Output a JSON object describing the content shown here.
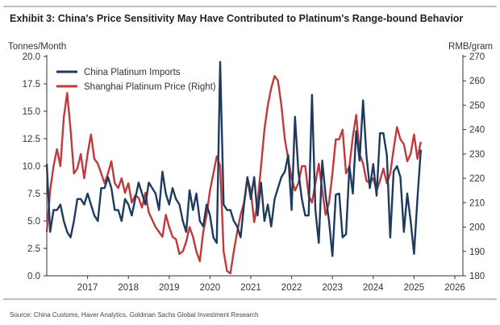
{
  "chart_data": {
    "type": "line",
    "title": "Exhibit 3: China's Price Sensitivity May Have Contributed to Platinum's Range-bound Behavior",
    "ylabel_left": "Tonnes/Month",
    "ylabel_right": "RMB/gram",
    "source": "Source: China Customs, Haver Analytics, Goldman Sachs Global Investment Research",
    "x_start": "2016-01",
    "x_frequency": "monthly",
    "xlim": [
      2016,
      2026
    ],
    "x_ticks": [
      "2017",
      "2018",
      "2019",
      "2020",
      "2021",
      "2022",
      "2023",
      "2024",
      "2025",
      "2026"
    ],
    "ylim_left": [
      0,
      20
    ],
    "y_ticks_left": [
      "0.0",
      "2.5",
      "5.0",
      "7.5",
      "10.0",
      "12.5",
      "15.0",
      "17.5",
      "20.0"
    ],
    "ylim_right": [
      180,
      270
    ],
    "y_ticks_right": [
      "180",
      "190",
      "200",
      "210",
      "220",
      "230",
      "240",
      "250",
      "260",
      "270"
    ],
    "grid": false,
    "legend_position": "top-left",
    "series": [
      {
        "name": "China Platinum Imports",
        "axis": "left",
        "color": "#1f3a5f",
        "values": [
          10.2,
          4,
          6,
          6,
          6.5,
          5,
          4,
          3.5,
          5,
          7,
          7,
          6.5,
          7.5,
          6.5,
          5.5,
          5,
          8,
          8,
          9,
          8,
          6,
          6,
          5,
          7,
          6.5,
          5.5,
          7,
          8.5,
          7.5,
          6.5,
          8.5,
          8,
          7.5,
          6,
          9.5,
          7.5,
          6.5,
          8,
          7,
          6.5,
          5,
          4,
          7.8,
          6,
          7.5,
          5,
          4.5,
          6.5,
          5.5,
          3.5,
          3,
          19.5,
          6.5,
          6,
          6,
          5,
          4.5,
          3.5,
          6.5,
          9,
          7,
          9,
          5.5,
          8.5,
          5,
          6.5,
          4.5,
          7,
          8,
          9,
          9.5,
          11,
          6,
          14.5,
          9.5,
          7,
          5.5,
          5.5,
          16.5,
          6,
          3,
          10.5,
          7.3,
          5,
          1.8,
          7.4,
          7.5,
          3.5,
          3.8,
          10,
          7.5,
          13.2,
          10.5,
          16,
          11,
          8,
          10.2,
          7.3,
          13,
          13,
          11,
          3.5,
          9.5,
          10,
          9,
          4,
          7.5,
          5,
          2,
          7,
          11.5
        ]
      },
      {
        "name": "Shanghai Platinum Price (Right)",
        "axis": "right",
        "color": "#c0393b",
        "values": [
          198,
          215,
          225,
          232,
          225,
          245,
          255,
          240,
          222,
          224,
          230,
          220,
          230,
          238,
          228,
          226,
          222,
          218,
          222,
          227,
          218,
          216,
          220,
          214,
          218,
          210,
          213,
          212,
          208,
          214,
          206,
          203,
          200,
          198,
          196,
          205,
          200,
          196,
          195,
          189,
          190,
          194,
          200,
          196,
          190,
          186,
          198,
          205,
          215,
          222,
          229,
          225,
          190,
          182,
          181,
          190,
          198,
          205,
          210,
          220,
          215,
          202,
          210,
          225,
          240,
          250,
          257,
          262,
          260,
          250,
          236,
          228,
          220,
          215,
          218,
          225,
          225,
          213,
          210,
          218,
          226,
          215,
          205,
          210,
          222,
          236,
          236,
          240,
          222,
          225,
          237,
          246,
          230,
          226,
          219,
          218,
          220,
          215,
          219,
          224,
          218,
          222,
          232,
          241,
          236,
          234,
          227,
          230,
          238,
          228,
          235
        ]
      }
    ]
  }
}
